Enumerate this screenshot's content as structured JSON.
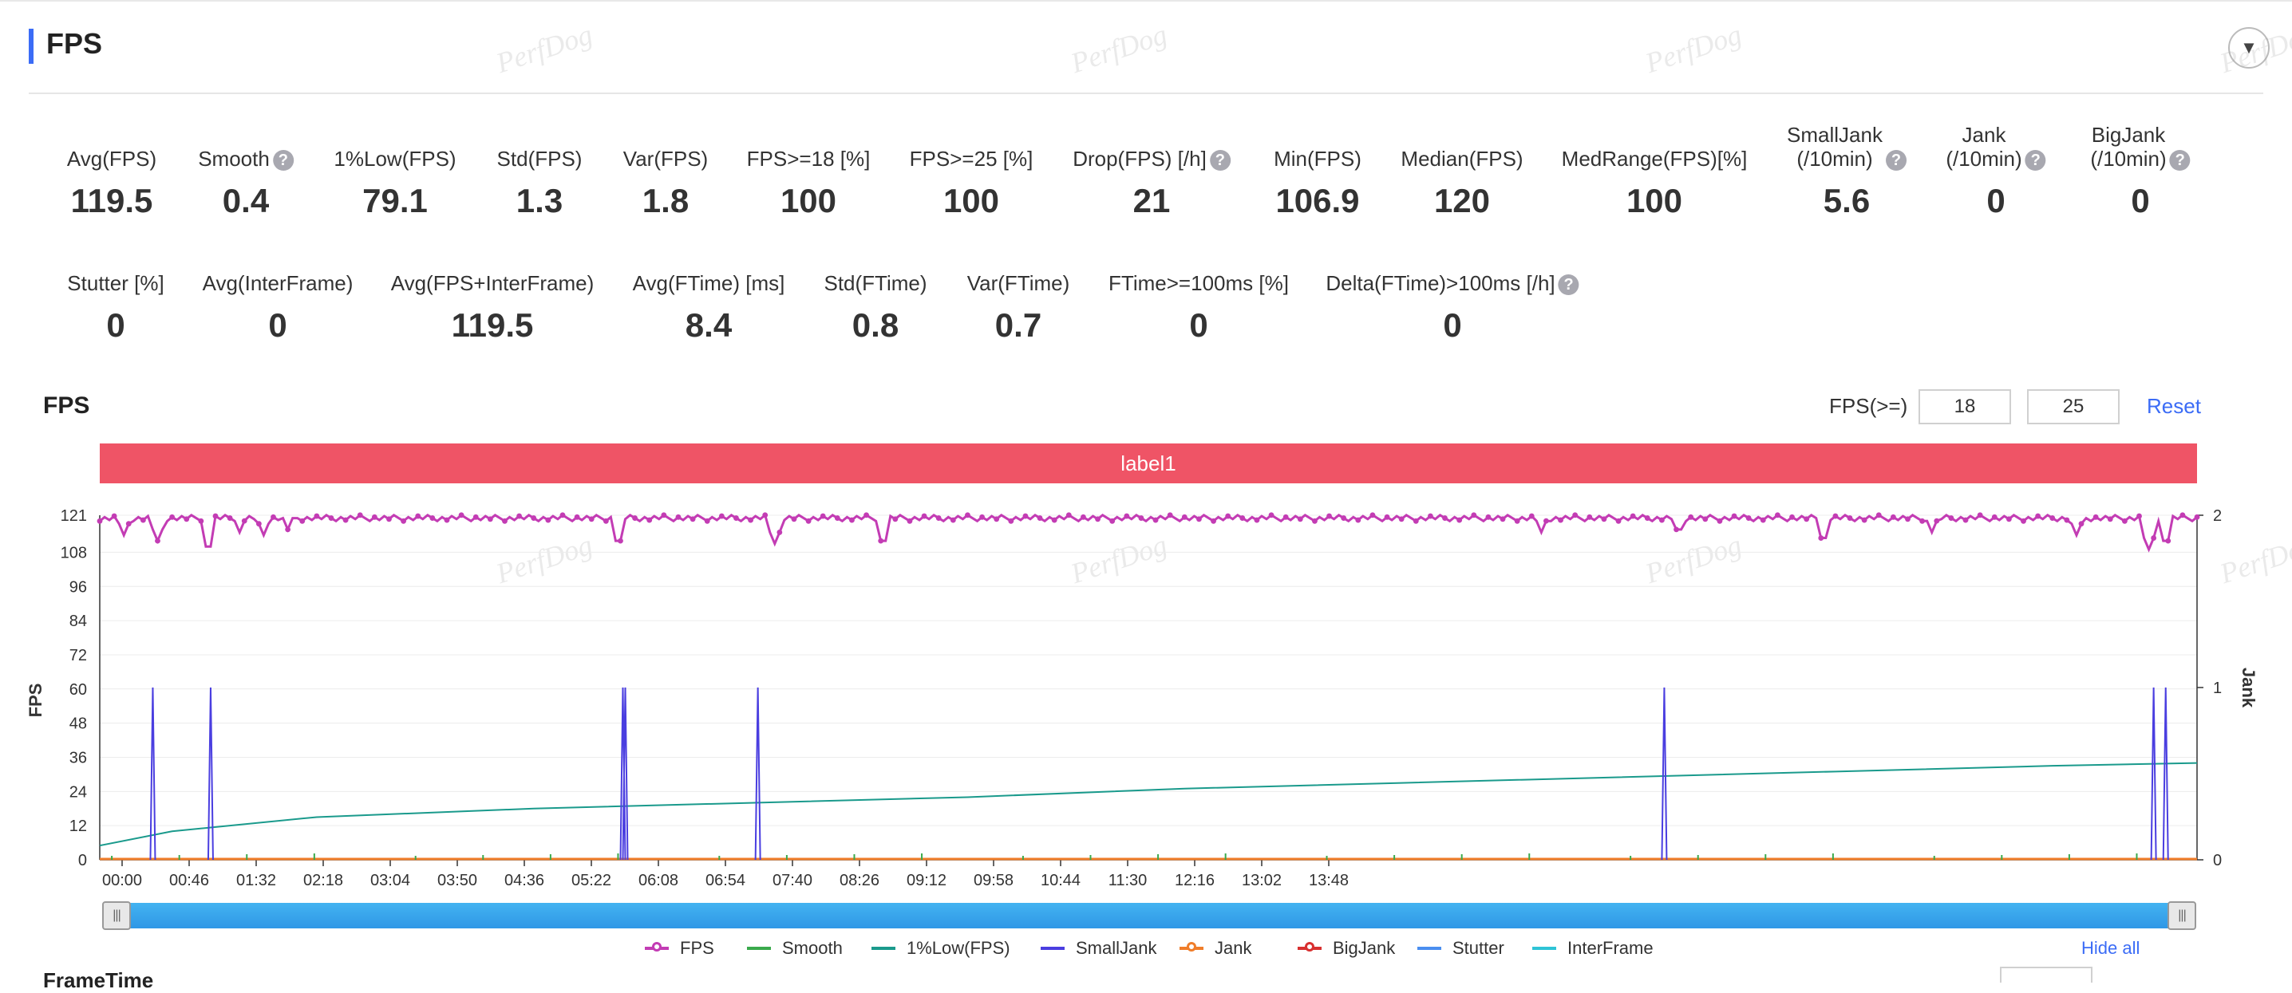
{
  "header": {
    "title": "FPS",
    "collapse_icon": "chevron-down-icon"
  },
  "watermark": "PerfDog",
  "stats_row1": [
    {
      "label": "Avg(FPS)",
      "value": "119.5",
      "help": false
    },
    {
      "label": "Smooth",
      "value": "0.4",
      "help": true
    },
    {
      "label": "1%Low(FPS)",
      "value": "79.1",
      "help": false
    },
    {
      "label": "Std(FPS)",
      "value": "1.3",
      "help": false
    },
    {
      "label": "Var(FPS)",
      "value": "1.8",
      "help": false
    },
    {
      "label": "FPS>=18 [%]",
      "value": "100",
      "help": false
    },
    {
      "label": "FPS>=25 [%]",
      "value": "100",
      "help": false
    },
    {
      "label": "Drop(FPS) [/h]",
      "value": "21",
      "help": true
    },
    {
      "label": "Min(FPS)",
      "value": "106.9",
      "help": false
    },
    {
      "label": "Median(FPS)",
      "value": "120",
      "help": false
    },
    {
      "label": "MedRange(FPS)[%]",
      "value": "100",
      "help": false
    },
    {
      "label": "SmallJank\n(/10min)",
      "value": "5.6",
      "help": true
    },
    {
      "label": "Jank\n(/10min)",
      "value": "0",
      "help": true
    },
    {
      "label": "BigJank\n(/10min)",
      "value": "0",
      "help": true
    }
  ],
  "stats_row2": [
    {
      "label": "Stutter [%]",
      "value": "0",
      "help": false
    },
    {
      "label": "Avg(InterFrame)",
      "value": "0",
      "help": false
    },
    {
      "label": "Avg(FPS+InterFrame)",
      "value": "119.5",
      "help": false
    },
    {
      "label": "Avg(FTime) [ms]",
      "value": "8.4",
      "help": false
    },
    {
      "label": "Std(FTime)",
      "value": "0.8",
      "help": false
    },
    {
      "label": "Var(FTime)",
      "value": "0.7",
      "help": false
    },
    {
      "label": "FTime>=100ms [%]",
      "value": "0",
      "help": false
    },
    {
      "label": "Delta(FTime)>100ms [/h]",
      "value": "0",
      "help": true
    }
  ],
  "chart_section": {
    "title": "FPS",
    "threshold_label": "FPS(>=)",
    "threshold_1": "18",
    "threshold_2": "25",
    "reset_label": "Reset",
    "label_band": "label1",
    "hide_all_label": "Hide all",
    "bottom_title": "FrameTime"
  },
  "chart_data": {
    "type": "line",
    "xlabel": "",
    "ylabel": "FPS",
    "y2label": "Jank",
    "ylim": [
      0,
      121
    ],
    "y2lim": [
      0,
      2
    ],
    "y_ticks": [
      0,
      12,
      24,
      36,
      48,
      60,
      72,
      84,
      96,
      108,
      121
    ],
    "y2_ticks": [
      0,
      1,
      2
    ],
    "x_range_seconds": [
      0,
      870
    ],
    "x_ticks": [
      "00:00",
      "00:46",
      "01:32",
      "02:18",
      "03:04",
      "03:50",
      "04:36",
      "05:22",
      "06:08",
      "06:54",
      "07:40",
      "08:26",
      "09:12",
      "09:58",
      "10:44",
      "11:30",
      "12:16",
      "13:02",
      "13:48"
    ],
    "grid": true,
    "legend_position": "bottom",
    "colors": {
      "FPS": "#c33cb4",
      "Smooth": "#3aaa4c",
      "1%Low(FPS)": "#1a9a8c",
      "SmallJank": "#4a3ee0",
      "Jank": "#f07d2a",
      "BigJank": "#d83030",
      "Stutter": "#4a8ef0",
      "InterFrame": "#2ec4d6"
    },
    "series": [
      {
        "name": "FPS",
        "baseline": 120,
        "dips": [
          [
            10,
            114
          ],
          [
            24,
            112
          ],
          [
            45,
            108
          ],
          [
            58,
            115
          ],
          [
            68,
            114
          ],
          [
            78,
            116
          ],
          [
            215,
            110
          ],
          [
            280,
            111
          ],
          [
            325,
            110
          ],
          [
            598,
            115
          ],
          [
            655,
            114
          ],
          [
            715,
            111
          ],
          [
            760,
            115
          ],
          [
            820,
            114
          ],
          [
            850,
            109
          ],
          [
            857,
            110
          ]
        ]
      },
      {
        "name": "Smooth",
        "values_near_zero": true
      },
      {
        "name": "1%Low(FPS)",
        "points": [
          [
            0,
            5
          ],
          [
            30,
            10
          ],
          [
            90,
            15
          ],
          [
            180,
            18
          ],
          [
            270,
            20
          ],
          [
            360,
            22
          ],
          [
            450,
            25
          ],
          [
            540,
            27
          ],
          [
            630,
            29
          ],
          [
            720,
            31
          ],
          [
            810,
            33
          ],
          [
            870,
            34
          ]
        ]
      },
      {
        "name": "SmallJank",
        "spikes_seconds": [
          22,
          46,
          217,
          218,
          273,
          649,
          852,
          857
        ]
      },
      {
        "name": "Jank",
        "values": "all 0"
      },
      {
        "name": "BigJank",
        "values": "all 0"
      },
      {
        "name": "Stutter",
        "values": "all 0"
      },
      {
        "name": "InterFrame",
        "values": "all 0"
      }
    ]
  },
  "legend": [
    {
      "name": "FPS",
      "color": "#c33cb4",
      "marker": true
    },
    {
      "name": "Smooth",
      "color": "#3aaa4c",
      "marker": false
    },
    {
      "name": "1%Low(FPS)",
      "color": "#1a9a8c",
      "marker": false
    },
    {
      "name": "SmallJank",
      "color": "#4a3ee0",
      "marker": false
    },
    {
      "name": "Jank",
      "color": "#f07d2a",
      "marker": true
    },
    {
      "name": "BigJank",
      "color": "#d83030",
      "marker": true
    },
    {
      "name": "Stutter",
      "color": "#4a8ef0",
      "marker": false
    },
    {
      "name": "InterFrame",
      "color": "#2ec4d6",
      "marker": false
    }
  ]
}
